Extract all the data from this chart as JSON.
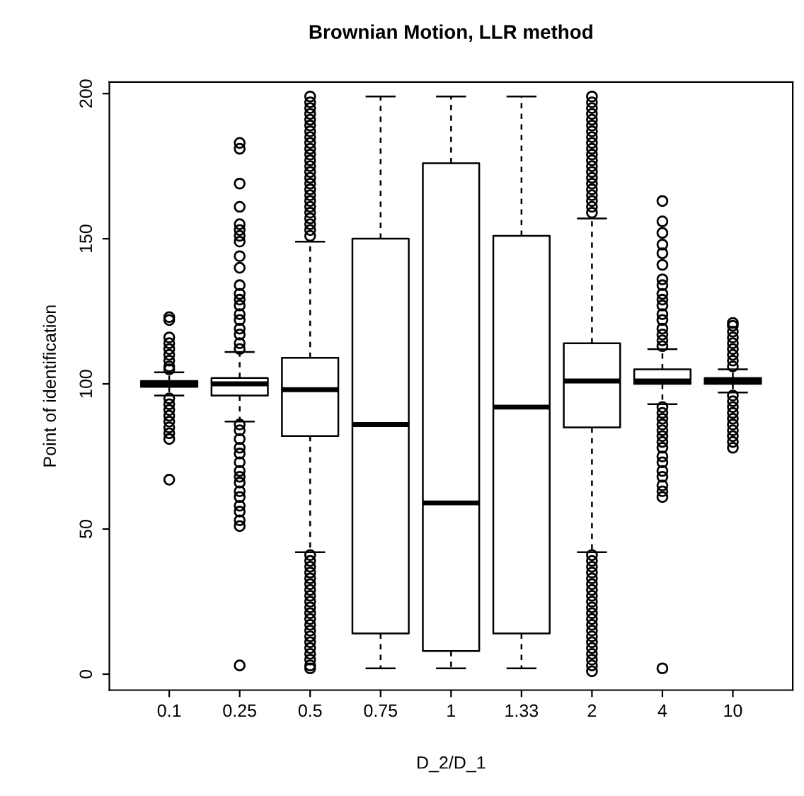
{
  "chart_data": {
    "type": "box",
    "title": "Brownian Motion, LLR method",
    "xlabel": "D_2/D_1",
    "ylabel": "Point of identification",
    "categories": [
      "0.1",
      "0.25",
      "0.5",
      "0.75",
      "1",
      "1.33",
      "2",
      "4",
      "10"
    ],
    "ylim": [
      -5.5,
      204
    ],
    "yticks": [
      0,
      50,
      100,
      150,
      200
    ],
    "grid": false,
    "marker": "circle",
    "boxes": [
      {
        "low": 96,
        "q1": 99,
        "median": 100,
        "q3": 101,
        "high": 104,
        "outliers": [
          123,
          122,
          116,
          114,
          112,
          110,
          108,
          106,
          105,
          95,
          93,
          91,
          89,
          87,
          85,
          83,
          81,
          67
        ]
      },
      {
        "low": 87,
        "q1": 96,
        "median": 100,
        "q3": 102,
        "high": 111,
        "outliers": [
          183,
          181,
          169,
          161,
          155,
          153,
          151,
          149,
          144,
          140,
          134,
          131,
          129,
          127,
          124,
          122,
          119,
          117,
          114,
          112,
          86,
          84,
          81,
          78,
          76,
          73,
          70,
          68,
          66,
          63,
          61,
          58,
          56,
          53,
          51,
          3
        ]
      },
      {
        "low": 42,
        "q1": 82,
        "median": 98,
        "q3": 109,
        "high": 149,
        "outliers": [
          151,
          153,
          155,
          157,
          159,
          161,
          163,
          165,
          167,
          169,
          171,
          173,
          175,
          177,
          179,
          181,
          183,
          185,
          187,
          189,
          191,
          193,
          195,
          197,
          199,
          41,
          39,
          37,
          35,
          33,
          31,
          29,
          27,
          25,
          23,
          21,
          19,
          17,
          15,
          13,
          11,
          9,
          7,
          5,
          3,
          2
        ]
      },
      {
        "low": 2,
        "q1": 14,
        "median": 86,
        "q3": 150,
        "high": 199
      },
      {
        "low": 2,
        "q1": 8,
        "median": 59,
        "q3": 176,
        "high": 199
      },
      {
        "low": 2,
        "q1": 14,
        "median": 92,
        "q3": 151,
        "high": 199
      },
      {
        "low": 42,
        "q1": 85,
        "median": 101,
        "q3": 114,
        "high": 157,
        "outliers": [
          159,
          161,
          163,
          165,
          167,
          169,
          171,
          173,
          175,
          177,
          179,
          181,
          183,
          185,
          187,
          189,
          191,
          193,
          195,
          197,
          199,
          41,
          39,
          37,
          35,
          33,
          31,
          29,
          27,
          25,
          23,
          21,
          19,
          17,
          15,
          13,
          11,
          9,
          7,
          5,
          3,
          1
        ]
      },
      {
        "low": 93,
        "q1": 100,
        "median": 101,
        "q3": 105,
        "high": 112,
        "outliers": [
          163,
          156,
          152,
          148,
          145,
          141,
          136,
          134,
          131,
          129,
          127,
          124,
          122,
          119,
          117,
          115,
          113,
          92,
          90,
          88,
          86,
          84,
          82,
          80,
          78,
          75,
          73,
          70,
          68,
          65,
          63,
          61,
          2
        ]
      },
      {
        "low": 97,
        "q1": 100,
        "median": 101,
        "q3": 102,
        "high": 105,
        "outliers": [
          106,
          108,
          110,
          112,
          114,
          116,
          118,
          120,
          121,
          96,
          94,
          92,
          90,
          88,
          86,
          84,
          82,
          80,
          78
        ]
      }
    ]
  }
}
